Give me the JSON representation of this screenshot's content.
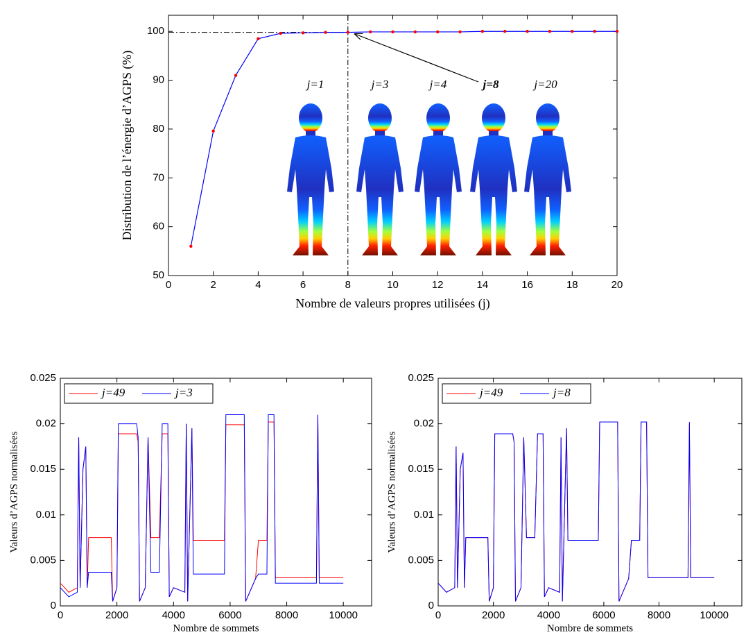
{
  "chart_data": [
    {
      "type": "line",
      "xlabel": "Nombre de valeurs propres utilisées (j)",
      "ylabel": "Distribution de l’énergie d’AGPS (%)",
      "x": [
        1,
        2,
        3,
        4,
        5,
        6,
        7,
        8,
        9,
        10,
        11,
        12,
        13,
        14,
        15,
        16,
        17,
        18,
        19,
        20
      ],
      "values": [
        56,
        79.6,
        91,
        98.5,
        99.6,
        99.7,
        99.8,
        99.8,
        99.9,
        99.9,
        99.9,
        99.9,
        99.9,
        100,
        100,
        100,
        100,
        100,
        100,
        100
      ],
      "color": "#0000ff",
      "marker_color": "#ff0000",
      "xlim": [
        0,
        20
      ],
      "xticks": [
        0,
        2,
        4,
        6,
        8,
        10,
        12,
        14,
        16,
        18,
        20
      ],
      "ylim": [
        50,
        103.3
      ],
      "yticks": [
        50,
        60,
        70,
        80,
        90,
        100
      ],
      "annotations": [
        "j=1",
        "j=3",
        "j=4",
        "j=8",
        "j=20"
      ]
    },
    {
      "type": "line",
      "xlabel": "Nombre de sommets",
      "ylabel": "Valeurs d’AGPS normalisées",
      "x": [
        0,
        300,
        600,
        650,
        700,
        800,
        900,
        950,
        1000,
        1800,
        1850,
        2000,
        2050,
        2700,
        2750,
        2800,
        3000,
        3100,
        3200,
        3500,
        3600,
        3800,
        3850,
        4000,
        4400,
        4450,
        4500,
        4650,
        4700,
        5800,
        5850,
        6500,
        6550,
        6900,
        7000,
        7300,
        7350,
        7550,
        7600,
        9050,
        9100,
        9150,
        10000
      ],
      "series": [
        {
          "name": "j=49",
          "color": "#ff0000",
          "values": [
            0.0025,
            0.0015,
            0.002,
            0.0185,
            0.002,
            0.015,
            0.0175,
            0.002,
            0.0075,
            0.0075,
            0.0005,
            0.002,
            0.0189,
            0.0189,
            0.018,
            0.0005,
            0.002,
            0.0185,
            0.0075,
            0.0075,
            0.0189,
            0.0189,
            0.001,
            0.002,
            0.0015,
            0.02,
            0.0005,
            0.0195,
            0.0072,
            0.0072,
            0.0199,
            0.0199,
            0.0005,
            0.003,
            0.0072,
            0.0072,
            0.0202,
            0.0202,
            0.0031,
            0.0031,
            0.021,
            0.0031,
            0.0031
          ]
        },
        {
          "name": "j=3",
          "color": "#0000ff",
          "values": [
            0.002,
            0.001,
            0.0015,
            0.0185,
            0.002,
            0.015,
            0.0175,
            0.002,
            0.0037,
            0.0037,
            0.0005,
            0.002,
            0.02,
            0.02,
            0.0185,
            0.0005,
            0.002,
            0.0185,
            0.0037,
            0.0037,
            0.02,
            0.02,
            0.001,
            0.002,
            0.0015,
            0.02,
            0.0005,
            0.0195,
            0.0035,
            0.0035,
            0.021,
            0.021,
            0.0005,
            0.003,
            0.0035,
            0.0035,
            0.021,
            0.021,
            0.0025,
            0.0025,
            0.021,
            0.0025,
            0.0025
          ]
        }
      ],
      "xlim": [
        0,
        11000
      ],
      "xticks": [
        0,
        2000,
        4000,
        6000,
        8000,
        10000
      ],
      "ylim": [
        0,
        0.025
      ],
      "yticks": [
        0,
        0.005,
        0.01,
        0.015,
        0.02,
        0.025
      ]
    },
    {
      "type": "line",
      "xlabel": "Nombre de sommets",
      "ylabel": "Valeurs d’AGPS normalisées",
      "x": [
        0,
        300,
        600,
        650,
        700,
        800,
        900,
        950,
        1000,
        1800,
        1850,
        2000,
        2050,
        2700,
        2750,
        2800,
        3000,
        3100,
        3200,
        3500,
        3600,
        3800,
        3850,
        4000,
        4400,
        4450,
        4500,
        4650,
        4700,
        5800,
        5850,
        6500,
        6550,
        6900,
        7000,
        7300,
        7350,
        7550,
        7600,
        9050,
        9100,
        9150,
        10000
      ],
      "series": [
        {
          "name": "j=49",
          "color": "#ff0000",
          "values": [
            0.0025,
            0.0015,
            0.002,
            0.0175,
            0.002,
            0.015,
            0.0168,
            0.002,
            0.0075,
            0.0075,
            0.0005,
            0.002,
            0.0189,
            0.0189,
            0.018,
            0.0005,
            0.002,
            0.0185,
            0.0075,
            0.0075,
            0.0189,
            0.0189,
            0.001,
            0.002,
            0.0015,
            0.0185,
            0.0005,
            0.0195,
            0.0072,
            0.0072,
            0.0202,
            0.0202,
            0.0005,
            0.003,
            0.0072,
            0.0072,
            0.0202,
            0.0202,
            0.0031,
            0.0031,
            0.02,
            0.0031,
            0.0031
          ]
        },
        {
          "name": "j=8",
          "color": "#0000ff",
          "values": [
            0.0025,
            0.0015,
            0.002,
            0.0175,
            0.002,
            0.015,
            0.0168,
            0.002,
            0.0075,
            0.0075,
            0.0005,
            0.002,
            0.0189,
            0.0189,
            0.018,
            0.0005,
            0.002,
            0.0185,
            0.0075,
            0.0075,
            0.0189,
            0.0189,
            0.001,
            0.002,
            0.0015,
            0.0185,
            0.0005,
            0.0195,
            0.0072,
            0.0072,
            0.0202,
            0.0202,
            0.0005,
            0.003,
            0.0072,
            0.0072,
            0.0202,
            0.0202,
            0.0031,
            0.0031,
            0.0202,
            0.0031,
            0.0031
          ]
        }
      ],
      "xlim": [
        0,
        11000
      ],
      "xticks": [
        0,
        2000,
        4000,
        6000,
        8000,
        10000
      ],
      "ylim": [
        0,
        0.025
      ],
      "yticks": [
        0,
        0.005,
        0.01,
        0.015,
        0.02,
        0.025
      ]
    }
  ]
}
